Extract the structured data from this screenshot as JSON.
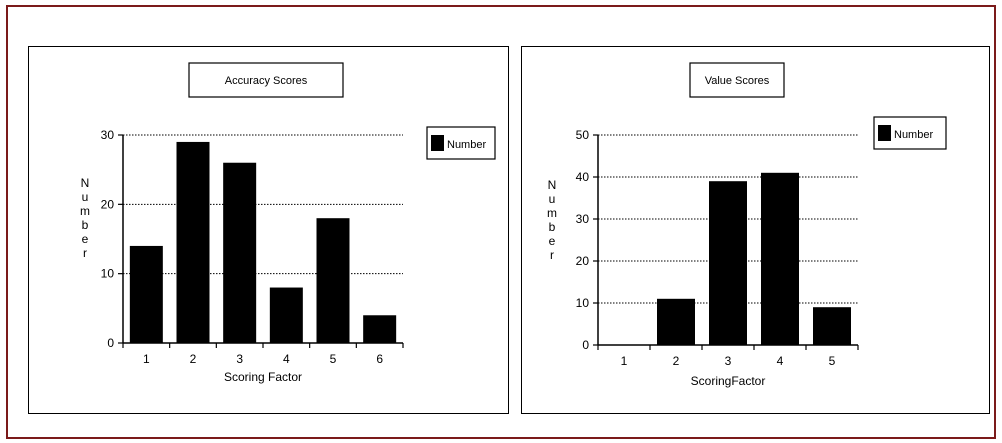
{
  "chart_data": [
    {
      "type": "bar",
      "title": "Accuracy Scores",
      "xlabel": "Scoring Factor",
      "ylabel": "Number",
      "categories": [
        "1",
        "2",
        "3",
        "4",
        "5",
        "6"
      ],
      "series": [
        {
          "name": "Number",
          "values": [
            14,
            29,
            26,
            8,
            18,
            4
          ]
        }
      ],
      "yticks": [
        "0",
        "10",
        "20",
        "30"
      ],
      "ylim": [
        0,
        30
      ],
      "grid": true,
      "legend_position": "top-right",
      "bar_color": "#000000"
    },
    {
      "type": "bar",
      "title": "Value Scores",
      "xlabel": "ScoringFactor",
      "ylabel": "Number",
      "categories": [
        "1",
        "2",
        "3",
        "4",
        "5"
      ],
      "series": [
        {
          "name": "Number",
          "values": [
            0,
            11,
            39,
            41,
            9
          ]
        }
      ],
      "yticks": [
        "0",
        "10",
        "20",
        "30",
        "40",
        "50"
      ],
      "ylim": [
        0,
        50
      ],
      "grid": true,
      "legend_position": "top-right",
      "bar_color": "#000000"
    }
  ]
}
